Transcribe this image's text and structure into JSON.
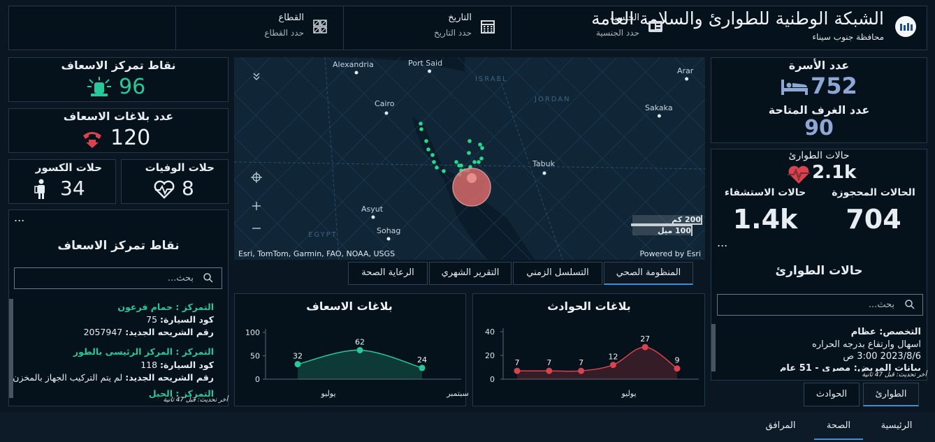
{
  "header": {
    "title": "الشبكة الوطنية للطوارئ والسلامة العامة",
    "subtitle": "محافظة جنوب سيناء",
    "filters": [
      {
        "label": "الجنسية",
        "placeholder": "حدد الجنسية"
      },
      {
        "label": "التاريخ",
        "placeholder": "حدد التاريخ"
      },
      {
        "label": "القطاع",
        "placeholder": "حدد القطاع"
      }
    ]
  },
  "left": {
    "ambulance_points": {
      "label": "نقاط تمركز الاسعاف",
      "value": 96
    },
    "ambulance_reports": {
      "label": "عدد بلاغات الاسعاف",
      "value": 120
    },
    "deaths": {
      "label": "حلات الوفيات",
      "value": 8
    },
    "fractures": {
      "label": "حلات الكسور",
      "value": 34
    },
    "list": {
      "menu": "...",
      "title": "نقاط تمركز الاسعاف",
      "search": "بحث...",
      "items": [
        {
          "station": "التمركز : حمام فرعون",
          "code_label": "كود السيارة:",
          "code": 75,
          "chip_label": "رقم الشريحه الجديد:",
          "chip": "2057947"
        },
        {
          "station": "التمركز : المركز الرئيسى بالطور",
          "code_label": "كود السيارة:",
          "code": 118,
          "chip_label": "رقم الشريحه الجديد:",
          "chip": "لم يتم التركيب الجهاز بالمخزن"
        },
        {
          "station": "التمركز : الحبل"
        }
      ],
      "updated": "أخر تحديث: قبل 47 ثانية"
    }
  },
  "map": {
    "places": [
      "Alexandria",
      "Port Said",
      "ISRAEL",
      "Cairo",
      "JORDAN",
      "Arar",
      "Sakaka",
      "Tabuk",
      "Asyut",
      "Sohag",
      "EGYPT"
    ],
    "scale": [
      "200 كم",
      "100 ميل"
    ],
    "attribution": "Esri, TomTom, Garmin, FAO, NOAA, USGS",
    "powered": "Powered by Esri"
  },
  "tabs": [
    "المنظومة الصحي",
    "التسلسل الزمني",
    "التقرير الشهري",
    "الرعاية الصحة"
  ],
  "chart_data": [
    {
      "type": "line",
      "title": "بلاغات الاسعاف",
      "values": [
        32,
        62,
        24
      ],
      "x_labels": [
        "يوليو",
        "سبتمبر"
      ],
      "color": "#27c99a",
      "ylim": [
        0,
        100
      ],
      "yticks": [
        0,
        50,
        100
      ]
    },
    {
      "type": "line",
      "title": "بلاغات الحوادث",
      "values": [
        7,
        7,
        7,
        12,
        27,
        9
      ],
      "x_labels": [
        "يوليو"
      ],
      "color": "#d9434e",
      "ylim": [
        0,
        40
      ],
      "yticks": [
        0,
        20,
        40
      ]
    }
  ],
  "right": {
    "beds": {
      "label": "عدد الأسرة",
      "value": 752
    },
    "rooms": {
      "label": "عدد الغرف المتاحة",
      "value": 90
    },
    "emergency": {
      "label": "حالات الطوارئ",
      "value": "2.1k"
    },
    "reserved": {
      "label": "الحالات المحجوزة",
      "value": 704
    },
    "hospitalized": {
      "label": "حالات الاستشفاء",
      "value": "1.4k"
    },
    "list": {
      "menu": "...",
      "title": "حالات الطوارئ",
      "search": "بحث...",
      "item": [
        "التخصص: عظام",
        "اسهال وارتفاع بدرجه الحراره",
        "2023/8/6 3:00 ص",
        "بيانات المريض: مصرى - 51 عام"
      ],
      "updated": "أخر تحديث: قبل 47 ثانية"
    },
    "tabs": [
      "الطوارئ",
      "الحوادث"
    ]
  },
  "nav": [
    "الرئيسية",
    "الصحة",
    "المرافق"
  ]
}
